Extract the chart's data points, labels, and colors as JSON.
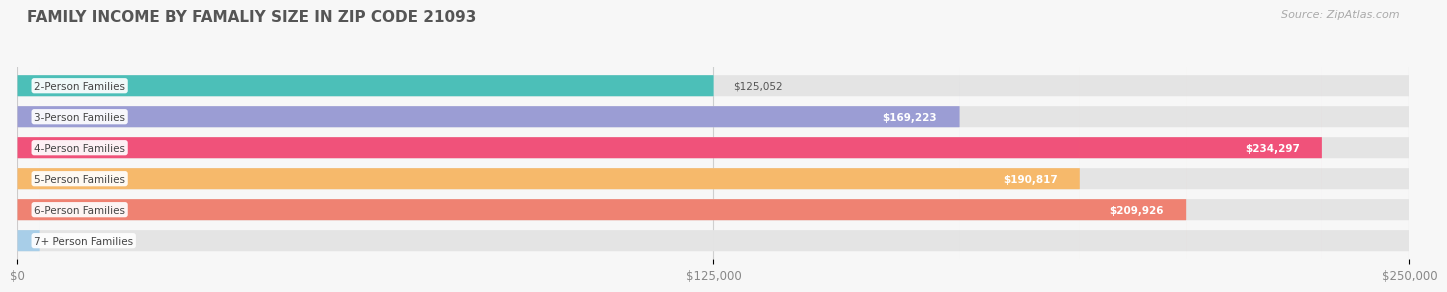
{
  "title": "FAMILY INCOME BY FAMALIY SIZE IN ZIP CODE 21093",
  "source": "Source: ZipAtlas.com",
  "categories": [
    "2-Person Families",
    "3-Person Families",
    "4-Person Families",
    "5-Person Families",
    "6-Person Families",
    "7+ Person Families"
  ],
  "values": [
    125052,
    169223,
    234297,
    190817,
    209926,
    0
  ],
  "bar_colors": [
    "#4CBFB8",
    "#9B9DD4",
    "#F0527A",
    "#F6B96B",
    "#EF8272",
    "#A8CEE8"
  ],
  "value_label_inside": [
    false,
    true,
    true,
    true,
    true,
    false
  ],
  "xticks": [
    0,
    125000,
    250000
  ],
  "xtick_labels": [
    "$0",
    "$125,000",
    "$250,000"
  ],
  "xlim": [
    0,
    250000
  ],
  "background_color": "#f7f7f7",
  "bar_bg_color": "#e8e8e8",
  "title_fontsize": 11,
  "label_fontsize": 7.5,
  "value_fontsize": 7.5,
  "source_fontsize": 8
}
